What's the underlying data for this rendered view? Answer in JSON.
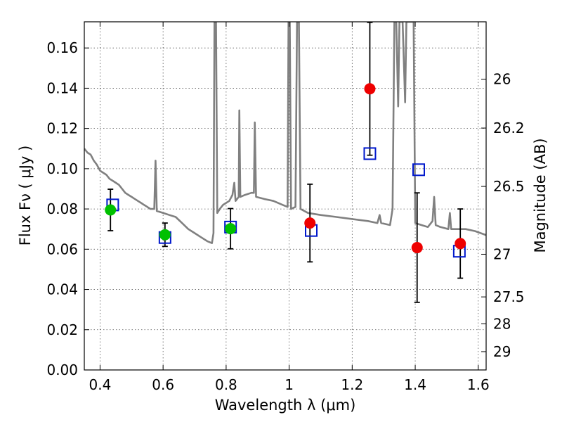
{
  "chart_data": {
    "type": "scatter",
    "xlabel": "Wavelength  λ (μm)",
    "ylabel": "Flux  Fν  ( μJy )",
    "y2label": "Magnitude (AB)",
    "xlim": [
      0.35,
      1.625
    ],
    "ylim": [
      0.0,
      0.173
    ],
    "x_ticks": [
      "0.4",
      "0.6",
      "0.8",
      "1",
      "1.2",
      "1.4",
      "1.6"
    ],
    "y_ticks": [
      "0.00",
      "0.02",
      "0.04",
      "0.06",
      "0.08",
      "0.10",
      "0.12",
      "0.14",
      "0.16"
    ],
    "y2_ticks": [
      {
        "label": "26",
        "flux": 0.1445
      },
      {
        "label": "26.2",
        "flux": 0.1202
      },
      {
        "label": "26.5",
        "flux": 0.0912
      },
      {
        "label": "27",
        "flux": 0.0575
      },
      {
        "label": "27.5",
        "flux": 0.0363
      },
      {
        "label": "28",
        "flux": 0.0229
      },
      {
        "label": "29",
        "flux": 0.0091
      }
    ],
    "grid": true,
    "colors": {
      "model_spectrum": "#808080",
      "observed_optical": "#00c000",
      "observed_nir": "#ee0000",
      "model_flux": "#0018cc",
      "error_bars": "#000000"
    },
    "series": [
      {
        "points": [
          {
            "x": 0.433,
            "y": 0.0795,
            "err": 0.0103
          },
          {
            "x": 0.606,
            "y": 0.0672,
            "err": 0.0058
          },
          {
            "x": 0.814,
            "y": 0.0702,
            "err": 0.01
          }
        ]
      },
      {
        "points": [
          {
            "x": 1.066,
            "y": 0.073,
            "err": 0.0193
          },
          {
            "x": 1.256,
            "y": 0.1397,
            "err": 0.033
          },
          {
            "x": 1.406,
            "y": 0.0608,
            "err": 0.0272
          },
          {
            "x": 1.543,
            "y": 0.0628,
            "err": 0.0172
          }
        ]
      },
      {
        "points": [
          {
            "x": 0.44,
            "y": 0.082
          },
          {
            "x": 0.606,
            "y": 0.0658
          },
          {
            "x": 0.814,
            "y": 0.071
          },
          {
            "x": 1.07,
            "y": 0.0693
          },
          {
            "x": 1.256,
            "y": 0.1075
          },
          {
            "x": 1.411,
            "y": 0.0995
          },
          {
            "x": 1.54,
            "y": 0.059
          }
        ]
      },
      {
        "points": [
          [
            0.35,
            0.11
          ],
          [
            0.36,
            0.108
          ],
          [
            0.37,
            0.107
          ],
          [
            0.38,
            0.104
          ],
          [
            0.39,
            0.102
          ],
          [
            0.4,
            0.099
          ],
          [
            0.41,
            0.098
          ],
          [
            0.42,
            0.097
          ],
          [
            0.43,
            0.095
          ],
          [
            0.44,
            0.094
          ],
          [
            0.45,
            0.093
          ],
          [
            0.46,
            0.092
          ],
          [
            0.47,
            0.09
          ],
          [
            0.48,
            0.088
          ],
          [
            0.49,
            0.087
          ],
          [
            0.5,
            0.086
          ],
          [
            0.51,
            0.085
          ],
          [
            0.52,
            0.084
          ],
          [
            0.53,
            0.083
          ],
          [
            0.54,
            0.082
          ],
          [
            0.55,
            0.081
          ],
          [
            0.56,
            0.08
          ],
          [
            0.572,
            0.08
          ],
          [
            0.576,
            0.104
          ],
          [
            0.58,
            0.079
          ],
          [
            0.6,
            0.078
          ],
          [
            0.62,
            0.077
          ],
          [
            0.64,
            0.076
          ],
          [
            0.66,
            0.073
          ],
          [
            0.68,
            0.07
          ],
          [
            0.7,
            0.068
          ],
          [
            0.72,
            0.066
          ],
          [
            0.74,
            0.064
          ],
          [
            0.755,
            0.063
          ],
          [
            0.76,
            0.068
          ],
          [
            0.763,
            0.173
          ],
          [
            0.768,
            0.173
          ],
          [
            0.772,
            0.078
          ],
          [
            0.78,
            0.08
          ],
          [
            0.79,
            0.082
          ],
          [
            0.8,
            0.083
          ],
          [
            0.81,
            0.084
          ],
          [
            0.82,
            0.087
          ],
          [
            0.826,
            0.093
          ],
          [
            0.83,
            0.084
          ],
          [
            0.84,
            0.086
          ],
          [
            0.842,
            0.129
          ],
          [
            0.845,
            0.086
          ],
          [
            0.86,
            0.087
          ],
          [
            0.88,
            0.088
          ],
          [
            0.888,
            0.088
          ],
          [
            0.891,
            0.123
          ],
          [
            0.895,
            0.086
          ],
          [
            0.92,
            0.085
          ],
          [
            0.95,
            0.084
          ],
          [
            0.98,
            0.082
          ],
          [
            0.995,
            0.081
          ],
          [
            0.998,
            0.173
          ],
          [
            1.002,
            0.173
          ],
          [
            1.006,
            0.08
          ],
          [
            1.02,
            0.081
          ],
          [
            1.025,
            0.173
          ],
          [
            1.031,
            0.173
          ],
          [
            1.036,
            0.08
          ],
          [
            1.06,
            0.078
          ],
          [
            1.1,
            0.077
          ],
          [
            1.15,
            0.076
          ],
          [
            1.2,
            0.075
          ],
          [
            1.25,
            0.074
          ],
          [
            1.28,
            0.073
          ],
          [
            1.287,
            0.077
          ],
          [
            1.292,
            0.073
          ],
          [
            1.32,
            0.072
          ],
          [
            1.328,
            0.08
          ],
          [
            1.334,
            0.173
          ],
          [
            1.34,
            0.173
          ],
          [
            1.346,
            0.131
          ],
          [
            1.35,
            0.173
          ],
          [
            1.36,
            0.173
          ],
          [
            1.368,
            0.133
          ],
          [
            1.372,
            0.173
          ],
          [
            1.395,
            0.173
          ],
          [
            1.4,
            0.073
          ],
          [
            1.42,
            0.072
          ],
          [
            1.44,
            0.071
          ],
          [
            1.455,
            0.074
          ],
          [
            1.46,
            0.086
          ],
          [
            1.465,
            0.072
          ],
          [
            1.48,
            0.071
          ],
          [
            1.505,
            0.07
          ],
          [
            1.51,
            0.078
          ],
          [
            1.514,
            0.07
          ],
          [
            1.53,
            0.07
          ],
          [
            1.56,
            0.07
          ],
          [
            1.59,
            0.069
          ],
          [
            1.625,
            0.067
          ]
        ]
      }
    ]
  }
}
